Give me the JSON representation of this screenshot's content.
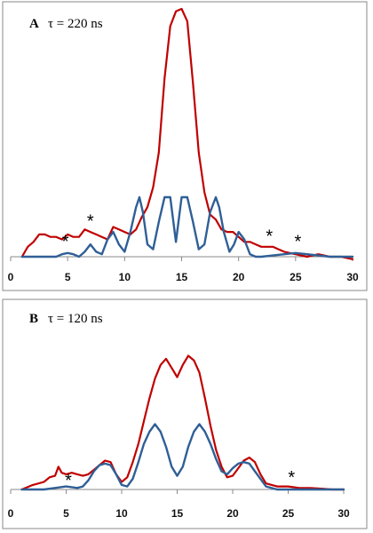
{
  "colors": {
    "measured": "#c00000",
    "simulated": "#2f5f96",
    "axis": "#8a8a8a"
  },
  "chart_data": [
    {
      "type": "line",
      "panel_letter": "A",
      "panel_label": "τ = 220 ns",
      "title": "",
      "xlabel": "",
      "ylabel": "",
      "xlim": [
        0,
        30
      ],
      "ylim": [
        0,
        1
      ],
      "xticks": [
        0,
        5,
        10,
        15,
        20,
        25,
        30
      ],
      "grid": false,
      "annotations": [
        {
          "text": "*",
          "x": 4.8,
          "y": 0.037
        },
        {
          "text": "*",
          "x": 7.0,
          "y": 0.12
        },
        {
          "text": "*",
          "x": 22.7,
          "y": 0.06
        },
        {
          "text": "*",
          "x": 25.2,
          "y": 0.037
        }
      ],
      "series": [
        {
          "color": "#c00000",
          "x": [
            1.0,
            1.5,
            2.0,
            2.5,
            3.0,
            3.5,
            4.0,
            4.5,
            5.0,
            5.5,
            6.0,
            6.5,
            7.0,
            7.5,
            8.0,
            8.5,
            9.0,
            9.5,
            10.0,
            10.5,
            11.0,
            11.5,
            12.0,
            12.5,
            13.0,
            13.5,
            14.0,
            14.5,
            15.0,
            15.5,
            16.0,
            16.5,
            17.0,
            17.5,
            18.0,
            18.5,
            19.0,
            19.5,
            20.0,
            20.5,
            21.0,
            21.5,
            22.0,
            22.5,
            23.0,
            23.5,
            24.0,
            25.0,
            26.0,
            27.0,
            28.0,
            29.0,
            30.0
          ],
          "y": [
            0.0,
            0.04,
            0.06,
            0.09,
            0.09,
            0.08,
            0.08,
            0.07,
            0.09,
            0.08,
            0.08,
            0.11,
            0.1,
            0.09,
            0.08,
            0.07,
            0.12,
            0.11,
            0.1,
            0.09,
            0.11,
            0.16,
            0.2,
            0.28,
            0.42,
            0.72,
            0.93,
            0.99,
            1.0,
            0.95,
            0.7,
            0.42,
            0.26,
            0.17,
            0.15,
            0.11,
            0.1,
            0.1,
            0.08,
            0.06,
            0.06,
            0.05,
            0.04,
            0.04,
            0.04,
            0.03,
            0.02,
            0.01,
            0.0,
            0.01,
            0.0,
            0.0,
            -0.01
          ]
        },
        {
          "color": "#2f5f96",
          "x": [
            1.0,
            2.0,
            3.0,
            4.0,
            4.5,
            5.0,
            5.5,
            6.0,
            6.5,
            7.0,
            7.5,
            8.0,
            8.5,
            9.0,
            9.5,
            10.0,
            10.5,
            11.0,
            11.3,
            11.6,
            12.0,
            12.5,
            13.0,
            13.5,
            14.0,
            14.5,
            15.0,
            15.5,
            16.0,
            16.5,
            17.0,
            17.5,
            18.0,
            18.3,
            18.7,
            19.2,
            19.6,
            20.0,
            20.5,
            21.0,
            21.5,
            22.0,
            23.0,
            24.0,
            25.0,
            26.0,
            27.0,
            28.0,
            29.0,
            30.0
          ],
          "y": [
            0.0,
            0.0,
            0.0,
            0.0,
            0.01,
            0.015,
            0.01,
            0.0,
            0.02,
            0.05,
            0.02,
            0.01,
            0.07,
            0.1,
            0.05,
            0.02,
            0.1,
            0.2,
            0.24,
            0.18,
            0.05,
            0.03,
            0.14,
            0.24,
            0.24,
            0.06,
            0.24,
            0.24,
            0.14,
            0.03,
            0.05,
            0.18,
            0.24,
            0.2,
            0.1,
            0.02,
            0.05,
            0.1,
            0.07,
            0.01,
            0.0,
            0.0,
            0.005,
            0.01,
            0.015,
            0.01,
            0.005,
            0.0,
            0.0,
            0.0
          ]
        }
      ]
    },
    {
      "type": "line",
      "panel_letter": "B",
      "panel_label": "τ = 120 ns",
      "title": "",
      "xlabel": "",
      "ylabel": "",
      "xlim": [
        0,
        30
      ],
      "ylim": [
        0,
        1
      ],
      "xticks": [
        0,
        5,
        10,
        15,
        20,
        25,
        30
      ],
      "grid": false,
      "annotations": [
        {
          "text": "*",
          "x": 5.2,
          "y": 0.02
        },
        {
          "text": "*",
          "x": 25.3,
          "y": 0.04
        }
      ],
      "series": [
        {
          "color": "#c00000",
          "x": [
            1.0,
            2.0,
            3.0,
            3.5,
            4.0,
            4.3,
            4.6,
            5.0,
            5.5,
            6.0,
            6.5,
            7.0,
            7.5,
            8.0,
            8.5,
            9.0,
            9.5,
            10.0,
            10.5,
            11.0,
            11.5,
            12.0,
            12.5,
            13.0,
            13.5,
            14.0,
            14.5,
            15.0,
            15.5,
            16.0,
            16.5,
            17.0,
            17.5,
            18.0,
            18.5,
            19.0,
            19.5,
            20.0,
            20.5,
            21.0,
            21.5,
            22.0,
            22.5,
            23.0,
            24.0,
            25.0,
            26.0,
            27.0,
            28.0,
            29.0,
            30.0
          ],
          "y": [
            0.0,
            0.03,
            0.05,
            0.08,
            0.09,
            0.15,
            0.11,
            0.1,
            0.11,
            0.1,
            0.09,
            0.1,
            0.13,
            0.16,
            0.19,
            0.18,
            0.1,
            0.05,
            0.08,
            0.18,
            0.3,
            0.45,
            0.6,
            0.73,
            0.82,
            0.86,
            0.8,
            0.74,
            0.82,
            0.88,
            0.85,
            0.77,
            0.6,
            0.42,
            0.26,
            0.15,
            0.08,
            0.09,
            0.14,
            0.19,
            0.21,
            0.18,
            0.1,
            0.04,
            0.02,
            0.02,
            0.01,
            0.01,
            0.005,
            0.0,
            0.0
          ]
        },
        {
          "color": "#2f5f96",
          "x": [
            1.0,
            2.0,
            3.0,
            4.0,
            4.5,
            5.0,
            5.5,
            6.0,
            6.5,
            7.0,
            7.5,
            8.0,
            8.5,
            9.0,
            9.5,
            10.0,
            10.5,
            11.0,
            11.5,
            12.0,
            12.5,
            13.0,
            13.5,
            14.0,
            14.5,
            15.0,
            15.5,
            16.0,
            16.5,
            17.0,
            17.5,
            18.0,
            18.5,
            19.0,
            19.5,
            20.0,
            20.5,
            21.0,
            21.5,
            22.0,
            23.0,
            24.0,
            25.0,
            26.0,
            27.0,
            28.0,
            29.0,
            30.0
          ],
          "y": [
            0.0,
            0.0,
            0.0,
            0.01,
            0.015,
            0.02,
            0.015,
            0.01,
            0.02,
            0.06,
            0.12,
            0.16,
            0.17,
            0.16,
            0.1,
            0.03,
            0.02,
            0.07,
            0.18,
            0.3,
            0.38,
            0.43,
            0.38,
            0.28,
            0.15,
            0.09,
            0.15,
            0.28,
            0.38,
            0.43,
            0.38,
            0.3,
            0.2,
            0.12,
            0.1,
            0.14,
            0.17,
            0.18,
            0.17,
            0.12,
            0.02,
            0.0,
            0.0,
            0.0,
            0.0,
            0.0,
            0.0,
            0.0
          ]
        }
      ]
    }
  ]
}
